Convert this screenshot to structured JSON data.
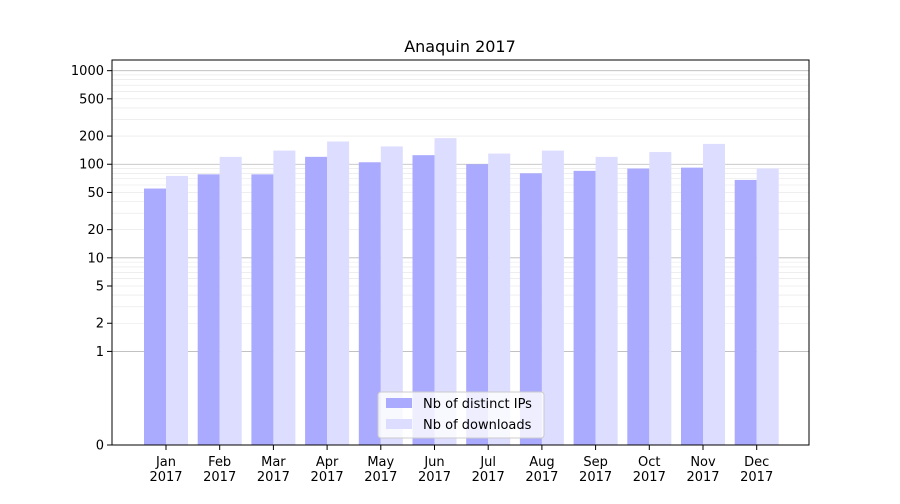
{
  "chart_data": {
    "type": "bar",
    "title": "Anaquin 2017",
    "xlabel": "",
    "ylabel": "",
    "y_scale": "symlog",
    "ylim": [
      0,
      1300
    ],
    "y_ticks": [
      0,
      1,
      2,
      5,
      10,
      20,
      50,
      100,
      200,
      500,
      1000
    ],
    "y_tick_labels": [
      "0",
      "1",
      "2",
      "5",
      "10",
      "20",
      "50",
      "100",
      "200",
      "500",
      "1000"
    ],
    "grid": true,
    "legend_position": "bottom-center",
    "categories": [
      "Jan\n2017",
      "Feb\n2017",
      "Mar\n2017",
      "Apr\n2017",
      "May\n2017",
      "Jun\n2017",
      "Jul\n2017",
      "Aug\n2017",
      "Sep\n2017",
      "Oct\n2017",
      "Nov\n2017",
      "Dec\n2017"
    ],
    "category_lines": [
      [
        "Jan",
        "2017"
      ],
      [
        "Feb",
        "2017"
      ],
      [
        "Mar",
        "2017"
      ],
      [
        "Apr",
        "2017"
      ],
      [
        "May",
        "2017"
      ],
      [
        "Jun",
        "2017"
      ],
      [
        "Jul",
        "2017"
      ],
      [
        "Aug",
        "2017"
      ],
      [
        "Sep",
        "2017"
      ],
      [
        "Oct",
        "2017"
      ],
      [
        "Nov",
        "2017"
      ],
      [
        "Dec",
        "2017"
      ]
    ],
    "series": [
      {
        "name": "Nb of distinct IPs",
        "color": "#aaaaff",
        "values": [
          55,
          78,
          78,
          120,
          105,
          125,
          100,
          80,
          85,
          90,
          92,
          68
        ]
      },
      {
        "name": "Nb of downloads",
        "color": "#ddddff",
        "values": [
          75,
          120,
          140,
          175,
          155,
          190,
          130,
          140,
          120,
          135,
          165,
          90
        ]
      }
    ]
  }
}
